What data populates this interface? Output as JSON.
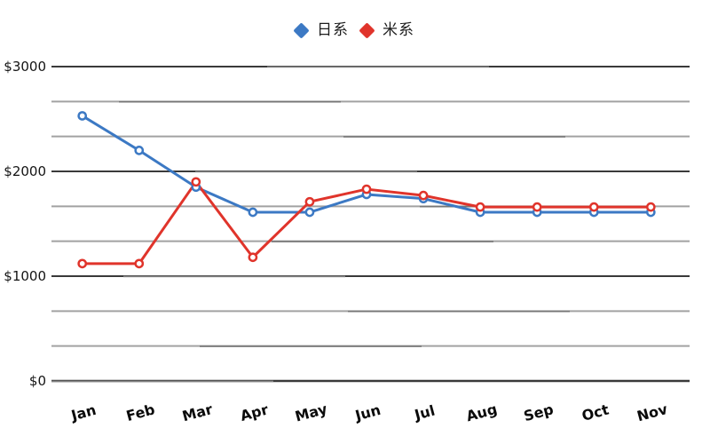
{
  "chart_data": {
    "type": "line",
    "title": "",
    "xlabel": "",
    "ylabel": "",
    "categories": [
      "Jan",
      "Feb",
      "Mar",
      "Apr",
      "May",
      "Jun",
      "Jul",
      "Aug",
      "Sep",
      "Oct",
      "Nov"
    ],
    "series": [
      {
        "name": "日系",
        "color": "#3c79c4",
        "legend_marker": "diamond",
        "point_style": "open-circle",
        "values": [
          2530,
          2200,
          1850,
          1610,
          1610,
          1780,
          1740,
          1610,
          1610,
          1610,
          1610
        ]
      },
      {
        "name": "米系",
        "color": "#e0342b",
        "legend_marker": "diamond",
        "point_style": "open-circle",
        "values": [
          1120,
          1120,
          1900,
          1180,
          1710,
          1830,
          1770,
          1660,
          1660,
          1660,
          1660
        ]
      }
    ],
    "ylim": [
      0,
      3000
    ],
    "yticks": {
      "values": [
        0,
        1000,
        2000,
        3000
      ],
      "labels": [
        "$0",
        "$1000",
        "$2000",
        "$3000"
      ]
    },
    "minor_gridlines_per_major": 3,
    "grid": true,
    "legend_position": "top",
    "x_tick_label_rotation": -15
  }
}
